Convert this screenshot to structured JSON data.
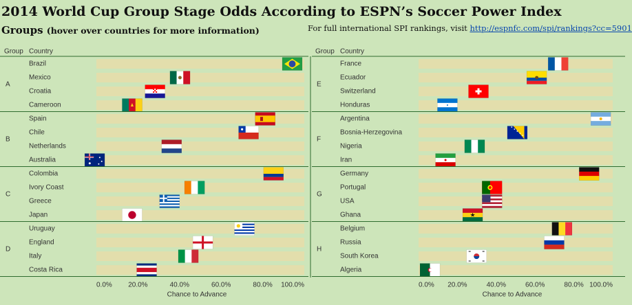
{
  "header": {
    "title": "2014 World Cup Group Stage Odds According to ESPN’s Soccer Power Index",
    "subtitle": "Groups",
    "subtitle_hint": "(hover over countries for more information)",
    "note": "For full international SPI rankings, visit",
    "link": "http://espnfc.com/spi/rankings?cc=5901"
  },
  "colors": {
    "background": "#cde5ba",
    "bar": "#e3deac",
    "separator": "#2e6b2e",
    "text": "#333333"
  },
  "chart_data": [
    {
      "type": "bar",
      "orientation": "horizontal",
      "group_header": "Group",
      "country_header": "Country",
      "xlabel": "Chance to Advance",
      "xlim": [
        0,
        100
      ],
      "ticks": [
        "0.0%",
        "20.0%",
        "40.0%",
        "60.0%",
        "80.0%",
        "100.0%"
      ],
      "groups": [
        {
          "name": "A",
          "teams": [
            {
              "country": "Brazil",
              "value": 99,
              "flag": "brazil-flag"
            },
            {
              "country": "Mexico",
              "value": 45,
              "flag": "mexico-flag"
            },
            {
              "country": "Croatia",
              "value": 33,
              "flag": "croatia-flag"
            },
            {
              "country": "Cameroon",
              "value": 22,
              "flag": "cameroon-flag"
            }
          ]
        },
        {
          "name": "B",
          "teams": [
            {
              "country": "Spain",
              "value": 86,
              "flag": "spain-flag"
            },
            {
              "country": "Chile",
              "value": 78,
              "flag": "chile-flag"
            },
            {
              "country": "Netherlands",
              "value": 41,
              "flag": "netherlands-flag"
            },
            {
              "country": "Australia",
              "value": 4,
              "flag": "australia-flag"
            }
          ]
        },
        {
          "name": "C",
          "teams": [
            {
              "country": "Colombia",
              "value": 90,
              "flag": "colombia-flag"
            },
            {
              "country": "Ivory Coast",
              "value": 52,
              "flag": "ivory-coast-flag"
            },
            {
              "country": "Greece",
              "value": 40,
              "flag": "greece-flag"
            },
            {
              "country": "Japan",
              "value": 22,
              "flag": "japan-flag"
            }
          ]
        },
        {
          "name": "D",
          "teams": [
            {
              "country": "Uruguay",
              "value": 76,
              "flag": "uruguay-flag"
            },
            {
              "country": "England",
              "value": 56,
              "flag": "england-flag"
            },
            {
              "country": "Italy",
              "value": 49,
              "flag": "italy-flag"
            },
            {
              "country": "Costa Rica",
              "value": 29,
              "flag": "costa-rica-flag"
            }
          ]
        }
      ]
    },
    {
      "type": "bar",
      "orientation": "horizontal",
      "group_header": "Group",
      "country_header": "Country",
      "xlabel": "Chance to Advance",
      "xlim": [
        0,
        100
      ],
      "ticks": [
        "0.0%",
        "20.0%",
        "40.0%",
        "60.0%",
        "80.0%",
        "100.0%"
      ],
      "groups": [
        {
          "name": "E",
          "teams": [
            {
              "country": "France",
              "value": 77,
              "flag": "france-flag"
            },
            {
              "country": "Ecuador",
              "value": 66,
              "flag": "ecuador-flag"
            },
            {
              "country": "Switzerland",
              "value": 36,
              "flag": "switzerland-flag"
            },
            {
              "country": "Honduras",
              "value": 20,
              "flag": "honduras-flag"
            }
          ]
        },
        {
          "name": "F",
          "teams": [
            {
              "country": "Argentina",
              "value": 99,
              "flag": "argentina-flag"
            },
            {
              "country": "Bosnia-Herzegovina",
              "value": 56,
              "flag": "bosnia-flag"
            },
            {
              "country": "Nigeria",
              "value": 34,
              "flag": "nigeria-flag"
            },
            {
              "country": "Iran",
              "value": 19,
              "flag": "iran-flag"
            }
          ]
        },
        {
          "name": "G",
          "teams": [
            {
              "country": "Germany",
              "value": 93,
              "flag": "germany-flag"
            },
            {
              "country": "Portugal",
              "value": 43,
              "flag": "portugal-flag"
            },
            {
              "country": "USA",
              "value": 43,
              "flag": "usa-flag"
            },
            {
              "country": "Ghana",
              "value": 33,
              "flag": "ghana-flag"
            }
          ]
        },
        {
          "name": "H",
          "teams": [
            {
              "country": "Belgium",
              "value": 79,
              "flag": "belgium-flag"
            },
            {
              "country": "Russia",
              "value": 75,
              "flag": "russia-flag"
            },
            {
              "country": "South Korea",
              "value": 35,
              "flag": "south-korea-flag"
            },
            {
              "country": "Algeria",
              "value": 11,
              "flag": "algeria-flag"
            }
          ]
        }
      ]
    }
  ]
}
